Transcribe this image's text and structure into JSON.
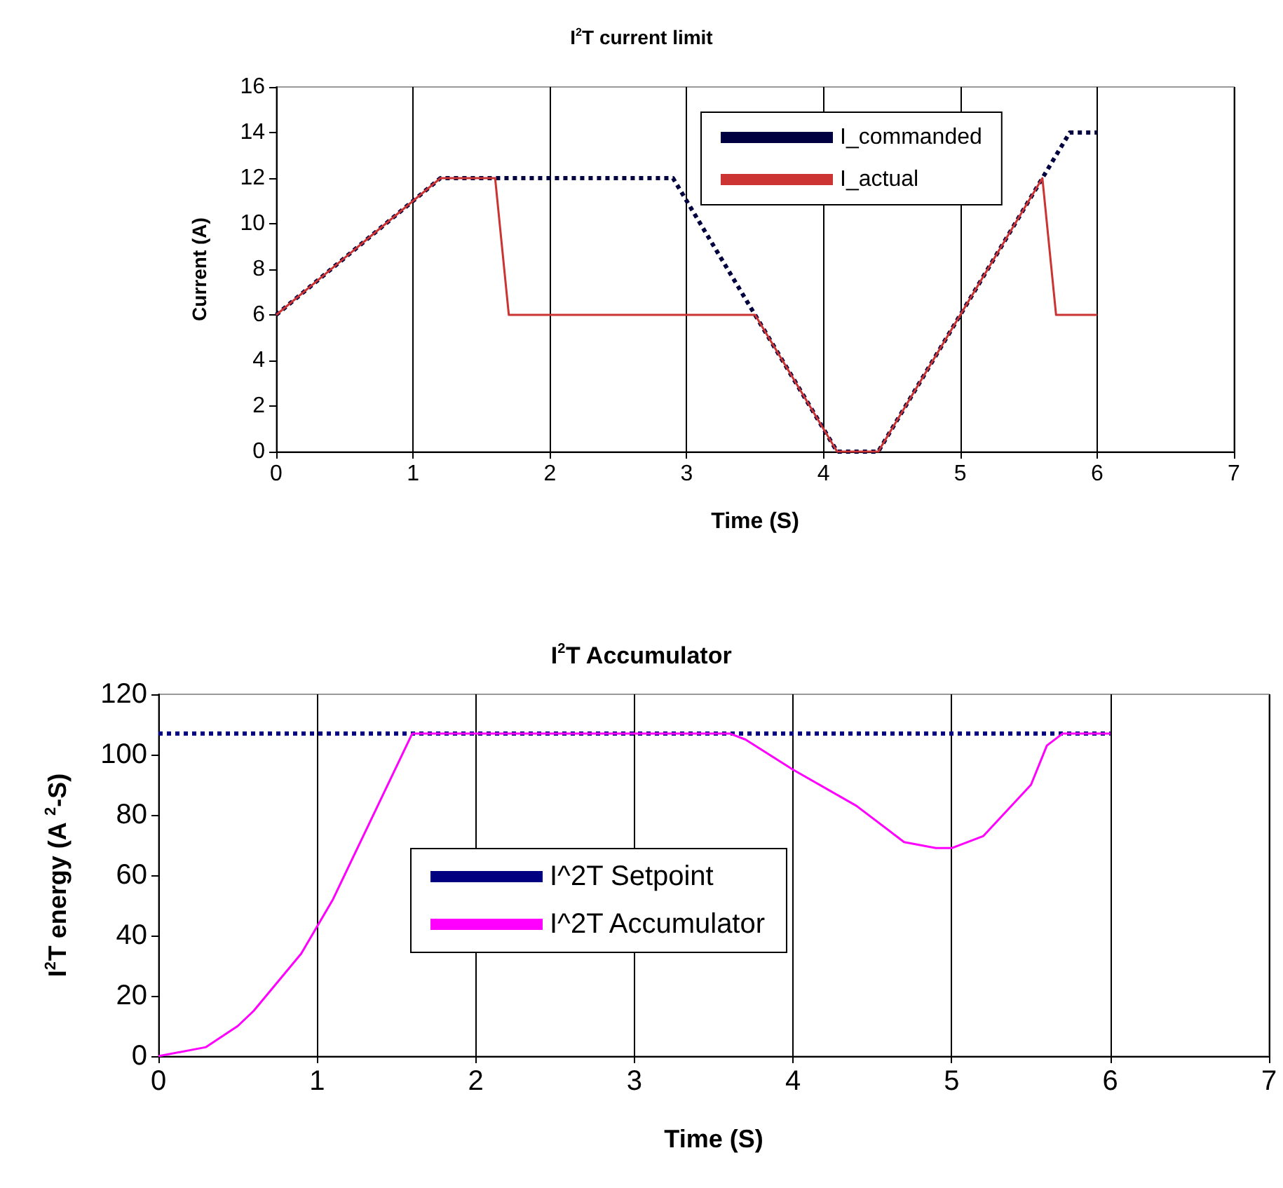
{
  "chart_data": [
    {
      "type": "line",
      "title": "I$^{2}$T current limit",
      "xlabel": "Time (S)",
      "ylabel": "Current (A)",
      "xlim": [
        0,
        7
      ],
      "xticks": [
        0,
        1,
        2,
        3,
        4,
        5,
        6,
        7
      ],
      "ylim": [
        0,
        16
      ],
      "yticks": [
        0,
        2,
        4,
        6,
        8,
        10,
        12,
        14,
        16
      ],
      "grid": "x",
      "legend": "top right",
      "marker": "none",
      "series": [
        {
          "name": "I_commanded",
          "color": "#000040",
          "line_style": "dotted",
          "x": [
            0,
            1,
            1.2,
            2.9,
            4.1,
            4.4,
            5.6,
            5.8,
            6
          ],
          "values": [
            6,
            11,
            12,
            12,
            0,
            0,
            12,
            14,
            14
          ]
        },
        {
          "name": "I_actual",
          "color": "#cc3333",
          "line_style": "solid",
          "x": [
            0,
            1,
            1.2,
            1.6,
            1.7,
            3.5,
            4.1,
            4.4,
            5.6,
            5.7,
            6
          ],
          "values": [
            6,
            11,
            12,
            12,
            6,
            6,
            0,
            0,
            12,
            6,
            6
          ]
        }
      ]
    },
    {
      "type": "line",
      "title": "I$^{2}$T Accumulator",
      "xlabel": "Time (S)",
      "ylabel": "I$^{2}$T energy (A $^{2}$-S)",
      "xlim": [
        0,
        7
      ],
      "xticks": [
        0,
        1,
        2,
        3,
        4,
        5,
        6,
        7
      ],
      "ylim": [
        0,
        120
      ],
      "yticks": [
        0,
        20,
        40,
        60,
        80,
        100,
        120
      ],
      "grid": "x",
      "legend": "center",
      "marker": "none",
      "series": [
        {
          "name": "I^2T Setpoint",
          "color": "#000080",
          "line_style": "dotted",
          "x": [
            0,
            6
          ],
          "values": [
            107,
            107
          ]
        },
        {
          "name": "I^2T Accumulator",
          "color": "#ff00ff",
          "line_style": "solid",
          "x": [
            0,
            0.3,
            0.5,
            0.6,
            0.9,
            1.1,
            1.6,
            3.6,
            3.7,
            4,
            4.4,
            4.7,
            4.9,
            5,
            5.2,
            5.5,
            5.6,
            5.7,
            6
          ],
          "values": [
            0,
            3,
            10,
            15,
            34,
            52,
            107,
            107,
            105,
            95,
            83,
            71,
            69,
            69,
            73,
            90,
            103,
            107,
            107
          ]
        }
      ]
    }
  ]
}
